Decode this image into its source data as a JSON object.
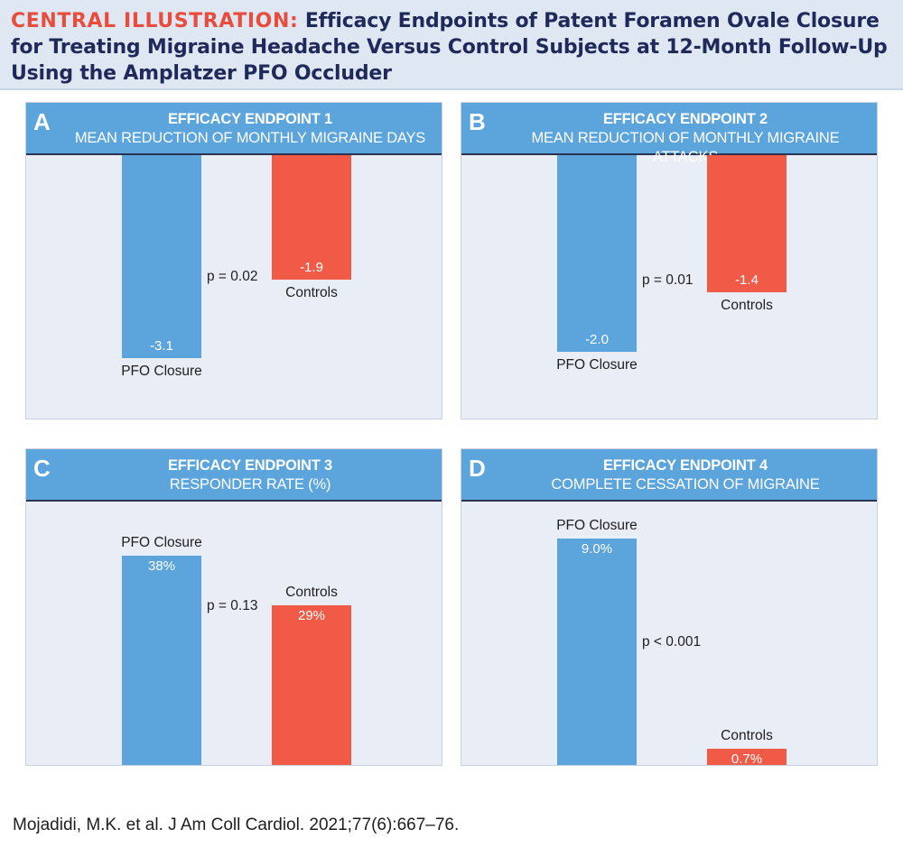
{
  "header": {
    "lead": "CENTRAL ILLUSTRATION:",
    "title": "Efficacy Endpoints of Patent Foramen Ovale Closure for Treating Migraine Headache Versus Control Subjects at 12-Month Follow-Up Using the Amplatzer PFO Occluder"
  },
  "colors": {
    "pfo": "#5ba4dc",
    "control": "#f05a46",
    "panel_bg": "#e9eef6",
    "title": "#1f2a5a",
    "lead": "#e94b3c"
  },
  "citation": "Mojadidi, M.K. et al. J Am Coll Cardiol. 2021;77(6):667–76.",
  "chart_data": [
    {
      "type": "bar",
      "panel": "A",
      "title": "EFFICACY ENDPOINT 1",
      "subtitle": "MEAN REDUCTION OF MONTHLY MIGRAINE DAYS",
      "categories": [
        "PFO Closure",
        "Controls"
      ],
      "values": [
        -3.1,
        -1.9
      ],
      "value_labels": [
        "-3.1",
        "-1.9"
      ],
      "annotation": "p = 0.02",
      "ylim": [
        -3.6,
        0
      ]
    },
    {
      "type": "bar",
      "panel": "B",
      "title": "EFFICACY ENDPOINT 2",
      "subtitle": "MEAN REDUCTION OF MONTHLY MIGRAINE ATTACKS",
      "categories": [
        "PFO Closure",
        "Controls"
      ],
      "values": [
        -2.0,
        -1.4
      ],
      "value_labels": [
        "-2.0",
        "-1.4"
      ],
      "annotation": "p = 0.01",
      "ylim": [
        -2.4,
        0
      ]
    },
    {
      "type": "bar",
      "panel": "C",
      "title": "EFFICACY ENDPOINT 3",
      "subtitle": "RESPONDER RATE (%)",
      "categories": [
        "PFO Closure",
        "Controls"
      ],
      "values": [
        38,
        29
      ],
      "value_labels": [
        "38%",
        "29%"
      ],
      "annotation": "p = 0.13",
      "ylim": [
        0,
        47
      ]
    },
    {
      "type": "bar",
      "panel": "D",
      "title": "EFFICACY ENDPOINT 4",
      "subtitle": "COMPLETE CESSATION OF MIGRAINE",
      "categories": [
        "PFO Closure",
        "Controls"
      ],
      "values": [
        9.0,
        0.7
      ],
      "value_labels": [
        "9.0%",
        "0.7%"
      ],
      "annotation": "p < 0.001",
      "ylim": [
        0,
        10.3
      ]
    }
  ]
}
